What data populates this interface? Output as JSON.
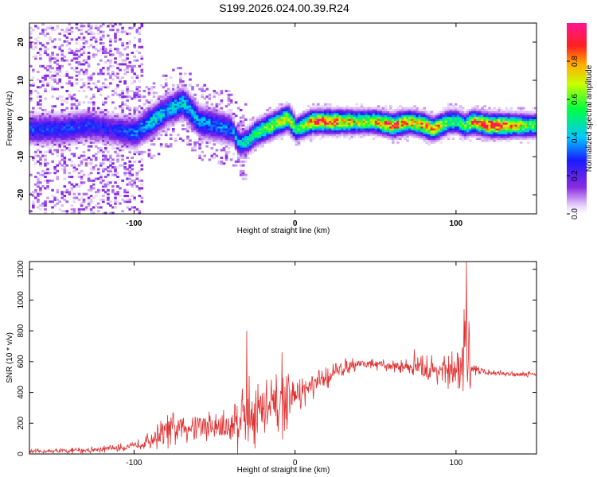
{
  "title": "S199.2026.024.00.39.R24",
  "chart_data": [
    {
      "type": "heatmap",
      "name": "spectrogram",
      "xlabel": "Height of straight line (km)",
      "ylabel": "Frequency (Hz)",
      "xlim": [
        -165,
        150
      ],
      "ylim": [
        -25,
        25
      ],
      "xticks": [
        -100,
        0,
        100
      ],
      "yticks": [
        20,
        10,
        0,
        -10,
        -20
      ],
      "colorbar": {
        "label": "Normalized spectral amplitude",
        "range": [
          0,
          1
        ],
        "ticks": [
          0.0,
          0.2,
          0.4,
          0.6,
          0.8
        ],
        "tick_labels": [
          "0.0",
          "0.2",
          "0.4",
          "0.6",
          "0.8"
        ]
      },
      "ridge": {
        "x": [
          -145,
          -130,
          -115,
          -100,
          -90,
          -80,
          -70,
          -60,
          -50,
          -40,
          -35,
          -30,
          -25,
          -20,
          -15,
          -10,
          -5,
          0,
          10,
          20,
          30,
          40,
          50,
          60,
          70,
          80,
          85,
          90,
          95,
          100,
          105,
          110,
          120,
          130,
          140,
          150
        ],
        "freq": [
          -3,
          -2,
          -3,
          -4,
          -1,
          2,
          4,
          -1,
          -2,
          -3,
          -7,
          -6,
          -4,
          -3,
          -2,
          -1,
          0,
          -3,
          -1,
          -1,
          -1,
          -1,
          -1,
          -2,
          -1,
          -2,
          -3,
          -2,
          -1,
          -1,
          -2,
          -1,
          -2,
          -2,
          -2,
          -2
        ],
        "amp": [
          0.3,
          0.3,
          0.25,
          0.35,
          0.45,
          0.4,
          0.45,
          0.4,
          0.35,
          0.35,
          0.45,
          0.5,
          0.55,
          0.6,
          0.65,
          0.7,
          0.75,
          0.55,
          0.85,
          0.9,
          0.8,
          0.7,
          0.75,
          0.9,
          0.8,
          0.85,
          0.8,
          0.75,
          0.6,
          0.55,
          0.6,
          0.85,
          0.95,
          0.9,
          0.7,
          0.55
        ]
      }
    },
    {
      "type": "line",
      "name": "snr",
      "xlabel": "Height of straight line (km)",
      "ylabel": "SNR (10 * v/v)",
      "xlim": [
        -165,
        150
      ],
      "ylim": [
        0,
        1250
      ],
      "xticks": [
        -100,
        0,
        100
      ],
      "yticks": [
        0,
        200,
        400,
        600,
        800,
        1000,
        1200
      ],
      "color": "#e03030",
      "envelope": {
        "x": [
          -165,
          -140,
          -120,
          -100,
          -90,
          -80,
          -70,
          -60,
          -50,
          -40,
          -35,
          -30,
          -25,
          -20,
          -10,
          -5,
          0,
          10,
          20,
          30,
          40,
          50,
          60,
          70,
          80,
          90,
          100,
          104,
          106,
          108,
          110,
          120,
          130,
          140,
          150
        ],
        "base": [
          15,
          20,
          30,
          50,
          90,
          150,
          170,
          190,
          170,
          170,
          250,
          260,
          270,
          280,
          300,
          330,
          380,
          430,
          500,
          560,
          590,
          580,
          570,
          570,
          550,
          540,
          530,
          520,
          600,
          560,
          560,
          530,
          520,
          520,
          520
        ],
        "noise": [
          15,
          20,
          25,
          30,
          60,
          120,
          120,
          120,
          120,
          160,
          250,
          250,
          250,
          250,
          250,
          200,
          120,
          100,
          80,
          60,
          40,
          40,
          40,
          50,
          100,
          120,
          150,
          300,
          300,
          250,
          60,
          20,
          20,
          20,
          20
        ]
      },
      "spikes": [
        {
          "x": -30,
          "y": 800
        },
        {
          "x": -8,
          "y": 660
        },
        {
          "x": 74,
          "y": 680
        },
        {
          "x": 105,
          "y": 940
        },
        {
          "x": 106.5,
          "y": 1250
        },
        {
          "x": 108,
          "y": 860
        }
      ]
    }
  ]
}
